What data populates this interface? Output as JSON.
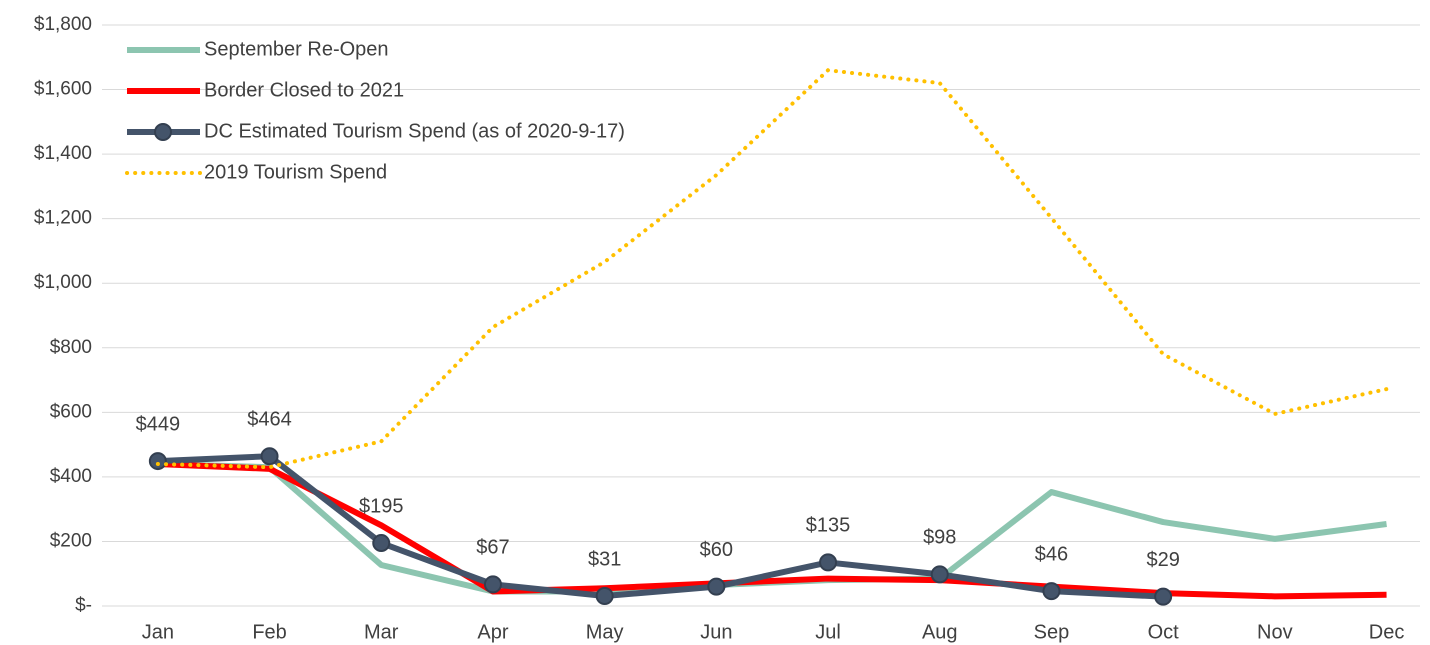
{
  "chart_data": {
    "type": "line",
    "categories": [
      "Jan",
      "Feb",
      "Mar",
      "Apr",
      "May",
      "Jun",
      "Jul",
      "Aug",
      "Sep",
      "Oct",
      "Nov",
      "Dec"
    ],
    "series": [
      {
        "name": "September Re-Open",
        "color": "#8cc5b0",
        "values": [
          440,
          430,
          127,
          45,
          45,
          65,
          80,
          85,
          353,
          260,
          208,
          254
        ]
      },
      {
        "name": "Border Closed to 2021",
        "color": "#ff0000",
        "values": [
          440,
          425,
          250,
          45,
          55,
          70,
          85,
          80,
          60,
          40,
          30,
          35
        ]
      },
      {
        "name": "DC Estimated Tourism Spend (as of 2020-9-17)",
        "color": "#44546a",
        "marker": true,
        "values": [
          449,
          464,
          195,
          67,
          31,
          60,
          135,
          98,
          46,
          29,
          null,
          null
        ],
        "value_labels": [
          "$449",
          "$464",
          "$195",
          "$67",
          "$31",
          "$60",
          "$135",
          "$98",
          "$46",
          "$29",
          null,
          null
        ]
      },
      {
        "name": "2019 Tourism Spend",
        "color": "#ffc000",
        "dash": "dotted",
        "values": [
          440,
          430,
          510,
          864,
          1066,
          1335,
          1660,
          1620,
          1202,
          780,
          595,
          672
        ]
      }
    ],
    "ylim": [
      0,
      1800
    ],
    "yticks": [
      {
        "value": 0,
        "label": "$-"
      },
      {
        "value": 200,
        "label": "$200"
      },
      {
        "value": 400,
        "label": "$400"
      },
      {
        "value": 600,
        "label": "$600"
      },
      {
        "value": 800,
        "label": "$800"
      },
      {
        "value": 1000,
        "label": "$1,000"
      },
      {
        "value": 1200,
        "label": "$1,200"
      },
      {
        "value": 1400,
        "label": "$1,400"
      },
      {
        "value": 1600,
        "label": "$1,600"
      },
      {
        "value": 1800,
        "label": "$1,800"
      }
    ],
    "grid": true,
    "legend": "top-left"
  }
}
